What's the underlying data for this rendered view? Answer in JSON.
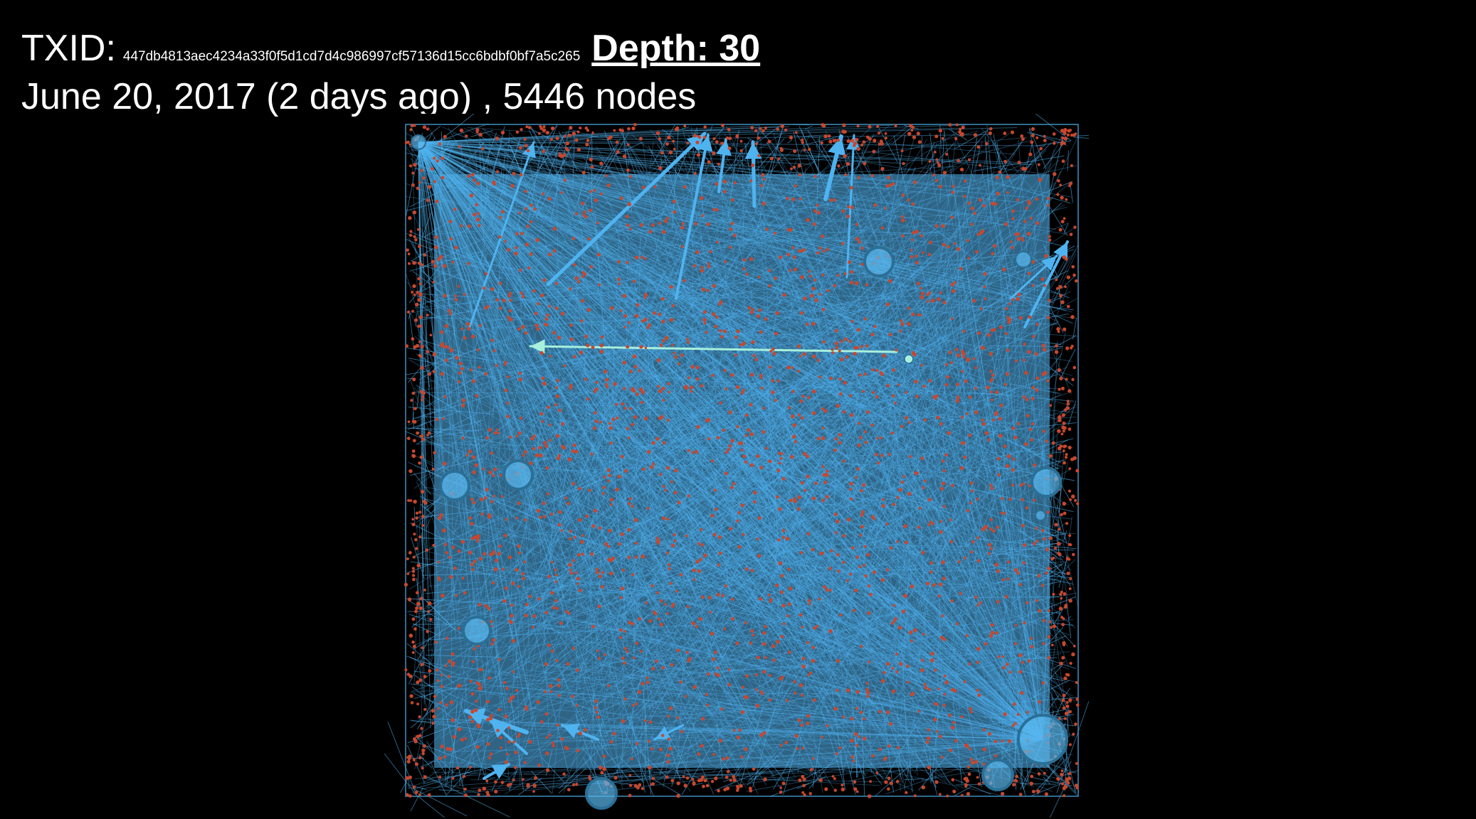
{
  "header": {
    "txid_label": "TXID:",
    "txid_value": "447db4813aec4234a33f0f5d1cd7d4c986997cf57136d15cc6bdbf0bf7a5c265",
    "depth_text": "Depth: 30",
    "date_text": "June 20, 2017 (2 days ago)",
    "separator": " , ",
    "nodes_text": "5446 nodes"
  },
  "graph": {
    "node_count": 5446,
    "colors": {
      "background": "#000000",
      "edge": "#4fb3f0",
      "edge_dense": "#55b6f2",
      "node": "#c8472e",
      "hub_fill": "#5ab8ee",
      "hub_stroke": "#2a6f96",
      "highlight": "#a8f0dc"
    }
  }
}
